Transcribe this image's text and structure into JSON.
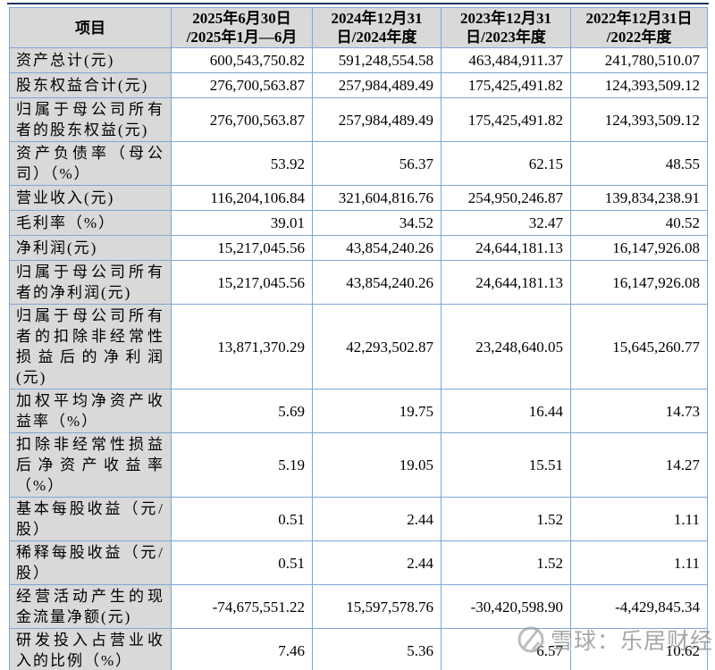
{
  "table": {
    "header": {
      "item_label": "项目",
      "periods": [
        {
          "lines": [
            "2025年6月30日",
            "/2025年1月—6月"
          ]
        },
        {
          "lines": [
            "2024年12月31",
            "日/2024年度"
          ]
        },
        {
          "lines": [
            "2023年12月31",
            "日/2023年度"
          ]
        },
        {
          "lines": [
            "2022年12月31日",
            "/2022年度"
          ]
        }
      ]
    },
    "rows": [
      {
        "label": "资产总计(元)",
        "values": [
          "600,543,750.82",
          "591,248,554.58",
          "463,484,911.37",
          "241,780,510.07"
        ],
        "single": true
      },
      {
        "label": "股东权益合计(元)",
        "values": [
          "276,700,563.87",
          "257,984,489.49",
          "175,425,491.82",
          "124,393,509.12"
        ],
        "single": true
      },
      {
        "label": "归属于母公司所有者的股东权益(元)",
        "values": [
          "276,700,563.87",
          "257,984,489.49",
          "175,425,491.82",
          "124,393,509.12"
        ],
        "single": false
      },
      {
        "label": "资产负债率（母公司）（%）",
        "values": [
          "53.92",
          "56.37",
          "62.15",
          "48.55"
        ],
        "single": false
      },
      {
        "label": "营业收入(元)",
        "values": [
          "116,204,106.84",
          "321,604,816.76",
          "254,950,246.87",
          "139,834,238.91"
        ],
        "single": true
      },
      {
        "label": "毛利率（%）",
        "values": [
          "39.01",
          "34.52",
          "32.47",
          "40.52"
        ],
        "single": true
      },
      {
        "label": "净利润(元)",
        "values": [
          "15,217,045.56",
          "43,854,240.26",
          "24,644,181.13",
          "16,147,926.08"
        ],
        "single": true
      },
      {
        "label": "归属于母公司所有者的净利润(元)",
        "values": [
          "15,217,045.56",
          "43,854,240.26",
          "24,644,181.13",
          "16,147,926.08"
        ],
        "single": false
      },
      {
        "label": "归属于母公司所有者的扣除非经常性损益后的净利润(元)",
        "values": [
          "13,871,370.29",
          "42,293,502.87",
          "23,248,640.05",
          "15,645,260.77"
        ],
        "single": false
      },
      {
        "label": "加权平均净资产收益率（%）",
        "values": [
          "5.69",
          "19.75",
          "16.44",
          "14.73"
        ],
        "single": false
      },
      {
        "label": "扣除非经常性损益后净资产收益率（%）",
        "values": [
          "5.19",
          "19.05",
          "15.51",
          "14.27"
        ],
        "single": false
      },
      {
        "label": "基本每股收益（元/股）",
        "values": [
          "0.51",
          "2.44",
          "1.52",
          "1.11"
        ],
        "single": false
      },
      {
        "label": "稀释每股收益（元/股）",
        "values": [
          "0.51",
          "2.44",
          "1.52",
          "1.11"
        ],
        "single": false
      },
      {
        "label": "经营活动产生的现金流量净额(元)",
        "values": [
          "-74,675,551.22",
          "15,597,578.76",
          "-30,420,598.90",
          "-4,429,845.34"
        ],
        "single": false
      },
      {
        "label": "研发投入占营业收入的比例（%）",
        "values": [
          "7.46",
          "5.36",
          "6.57",
          "10.62"
        ],
        "single": false
      }
    ]
  },
  "watermark": {
    "icon": "xueqiu-logo-icon",
    "text": "雪球：乐居财经"
  },
  "colors": {
    "header_bg": "#d9d9d9",
    "border": "#7da7d7",
    "border_heavy": "#4a7ebb",
    "top_rule": "#17365d",
    "text": "#000000",
    "watermark_gray": "#919191"
  }
}
